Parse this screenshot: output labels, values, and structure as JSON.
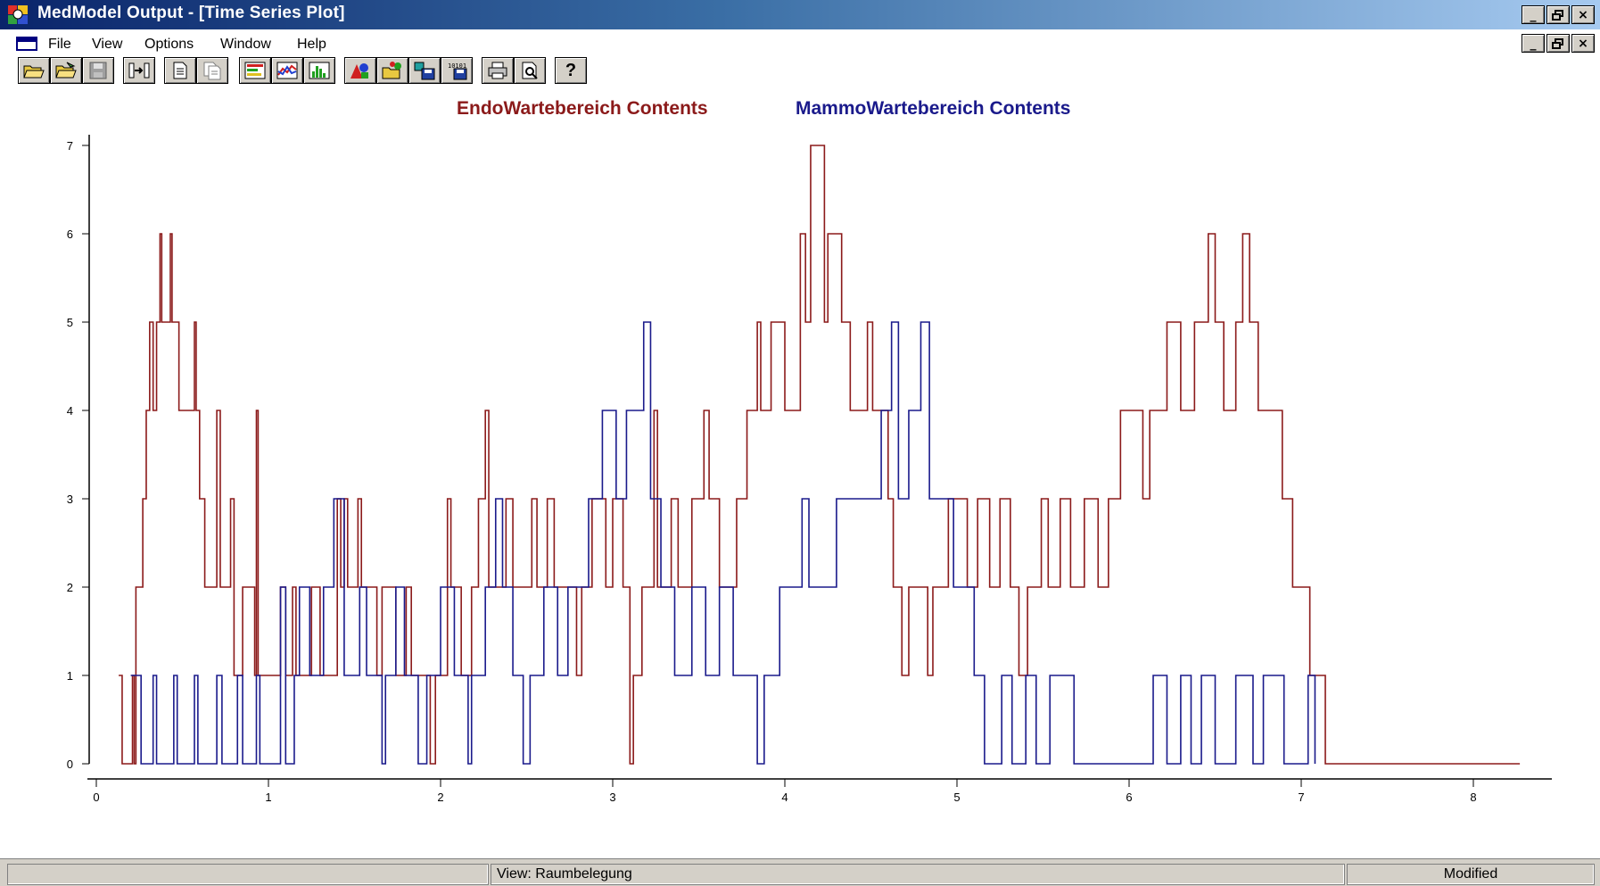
{
  "window": {
    "title": "MedModel Output - [Time Series Plot]"
  },
  "window_controls": {
    "minimize": "_",
    "restore": "̅̅",
    "close": "×"
  },
  "menu": {
    "items": [
      "File",
      "View",
      "Options",
      "Window",
      "Help"
    ]
  },
  "toolbar": {
    "buttons": [
      "open-icon",
      "open-folder-icon",
      "save-icon",
      "export-icon",
      "document-icon",
      "copy-document-icon",
      "state-chart-icon",
      "time-series-icon",
      "histogram-icon",
      "shapes-icon",
      "open-chart-icon",
      "save-chart-icon",
      "save-binary-icon",
      "print-icon",
      "print-preview-icon",
      "help-icon"
    ],
    "help_label": "?"
  },
  "chart_data": {
    "type": "line",
    "step": true,
    "xlim": [
      0,
      8.3
    ],
    "ylim": [
      0,
      7
    ],
    "x_ticks": [
      "0",
      "1",
      "2",
      "3",
      "4",
      "5",
      "6",
      "7",
      "8"
    ],
    "y_ticks": [
      "0",
      "1",
      "2",
      "3",
      "4",
      "5",
      "6",
      "7"
    ],
    "legend_position": "top-center",
    "grid": false,
    "series": [
      {
        "name": "EndoWartebereich Contents",
        "color": "#8b1a1a",
        "points": [
          [
            0.13,
            1
          ],
          [
            0.15,
            0
          ],
          [
            0.21,
            1
          ],
          [
            0.22,
            0
          ],
          [
            0.23,
            2
          ],
          [
            0.27,
            3
          ],
          [
            0.29,
            4
          ],
          [
            0.31,
            5
          ],
          [
            0.33,
            4
          ],
          [
            0.35,
            5
          ],
          [
            0.37,
            6
          ],
          [
            0.38,
            5
          ],
          [
            0.41,
            5
          ],
          [
            0.43,
            6
          ],
          [
            0.44,
            5
          ],
          [
            0.48,
            4
          ],
          [
            0.57,
            5
          ],
          [
            0.58,
            4
          ],
          [
            0.6,
            3
          ],
          [
            0.63,
            2
          ],
          [
            0.7,
            4
          ],
          [
            0.72,
            2
          ],
          [
            0.78,
            3
          ],
          [
            0.8,
            1
          ],
          [
            0.85,
            2
          ],
          [
            0.92,
            1
          ],
          [
            0.93,
            4
          ],
          [
            0.94,
            1
          ],
          [
            1.07,
            2
          ],
          [
            1.1,
            1
          ],
          [
            1.14,
            2
          ],
          [
            1.16,
            1
          ],
          [
            1.25,
            2
          ],
          [
            1.3,
            1
          ],
          [
            1.4,
            3
          ],
          [
            1.42,
            2
          ],
          [
            1.44,
            3
          ],
          [
            1.46,
            2
          ],
          [
            1.52,
            3
          ],
          [
            1.54,
            2
          ],
          [
            1.63,
            1
          ],
          [
            1.66,
            2
          ],
          [
            1.74,
            1
          ],
          [
            1.8,
            2
          ],
          [
            1.83,
            1
          ],
          [
            1.94,
            0
          ],
          [
            1.97,
            1
          ],
          [
            2.04,
            3
          ],
          [
            2.06,
            2
          ],
          [
            2.12,
            1
          ],
          [
            2.18,
            2
          ],
          [
            2.22,
            3
          ],
          [
            2.26,
            4
          ],
          [
            2.28,
            2
          ],
          [
            2.38,
            3
          ],
          [
            2.42,
            2
          ],
          [
            2.53,
            3
          ],
          [
            2.56,
            2
          ],
          [
            2.62,
            3
          ],
          [
            2.66,
            2
          ],
          [
            2.79,
            1
          ],
          [
            2.82,
            2
          ],
          [
            2.88,
            3
          ],
          [
            2.96,
            2
          ],
          [
            3.0,
            3
          ],
          [
            3.06,
            2
          ],
          [
            3.1,
            0
          ],
          [
            3.12,
            1
          ],
          [
            3.17,
            2
          ],
          [
            3.24,
            4
          ],
          [
            3.26,
            2
          ],
          [
            3.34,
            3
          ],
          [
            3.38,
            2
          ],
          [
            3.46,
            3
          ],
          [
            3.53,
            4
          ],
          [
            3.56,
            3
          ],
          [
            3.62,
            2
          ],
          [
            3.72,
            3
          ],
          [
            3.78,
            4
          ],
          [
            3.84,
            5
          ],
          [
            3.86,
            4
          ],
          [
            3.92,
            5
          ],
          [
            4.0,
            4
          ],
          [
            4.09,
            6
          ],
          [
            4.12,
            5
          ],
          [
            4.15,
            7
          ],
          [
            4.23,
            5
          ],
          [
            4.25,
            6
          ],
          [
            4.33,
            5
          ],
          [
            4.38,
            4
          ],
          [
            4.48,
            5
          ],
          [
            4.51,
            4
          ],
          [
            4.6,
            3
          ],
          [
            4.63,
            2
          ],
          [
            4.68,
            1
          ],
          [
            4.72,
            2
          ],
          [
            4.83,
            1
          ],
          [
            4.86,
            2
          ],
          [
            4.95,
            3
          ],
          [
            5.06,
            2
          ],
          [
            5.12,
            3
          ],
          [
            5.19,
            2
          ],
          [
            5.25,
            3
          ],
          [
            5.31,
            2
          ],
          [
            5.36,
            1
          ],
          [
            5.41,
            2
          ],
          [
            5.49,
            3
          ],
          [
            5.53,
            2
          ],
          [
            5.6,
            3
          ],
          [
            5.66,
            2
          ],
          [
            5.74,
            3
          ],
          [
            5.82,
            2
          ],
          [
            5.88,
            3
          ],
          [
            5.95,
            4
          ],
          [
            6.08,
            3
          ],
          [
            6.12,
            4
          ],
          [
            6.22,
            5
          ],
          [
            6.3,
            4
          ],
          [
            6.38,
            5
          ],
          [
            6.46,
            6
          ],
          [
            6.5,
            5
          ],
          [
            6.55,
            4
          ],
          [
            6.62,
            5
          ],
          [
            6.66,
            6
          ],
          [
            6.7,
            5
          ],
          [
            6.75,
            4
          ],
          [
            6.89,
            3
          ],
          [
            6.95,
            2
          ],
          [
            7.05,
            1
          ],
          [
            7.14,
            0
          ],
          [
            8.27,
            0
          ]
        ]
      },
      {
        "name": "MammoWartebereich Contents",
        "color": "#1a1a8b",
        "points": [
          [
            0.2,
            1
          ],
          [
            0.26,
            0
          ],
          [
            0.33,
            1
          ],
          [
            0.35,
            0
          ],
          [
            0.45,
            1
          ],
          [
            0.47,
            0
          ],
          [
            0.57,
            1
          ],
          [
            0.59,
            0
          ],
          [
            0.7,
            1
          ],
          [
            0.73,
            0
          ],
          [
            0.82,
            1
          ],
          [
            0.85,
            0
          ],
          [
            0.93,
            1
          ],
          [
            0.95,
            0
          ],
          [
            1.07,
            2
          ],
          [
            1.1,
            0
          ],
          [
            1.15,
            1
          ],
          [
            1.18,
            2
          ],
          [
            1.24,
            1
          ],
          [
            1.32,
            2
          ],
          [
            1.38,
            3
          ],
          [
            1.44,
            1
          ],
          [
            1.53,
            2
          ],
          [
            1.57,
            1
          ],
          [
            1.66,
            0
          ],
          [
            1.68,
            1
          ],
          [
            1.74,
            2
          ],
          [
            1.79,
            1
          ],
          [
            1.87,
            0
          ],
          [
            1.92,
            1
          ],
          [
            2.0,
            2
          ],
          [
            2.08,
            1
          ],
          [
            2.16,
            0
          ],
          [
            2.18,
            1
          ],
          [
            2.26,
            2
          ],
          [
            2.32,
            3
          ],
          [
            2.36,
            2
          ],
          [
            2.42,
            1
          ],
          [
            2.48,
            0
          ],
          [
            2.52,
            1
          ],
          [
            2.6,
            2
          ],
          [
            2.68,
            1
          ],
          [
            2.74,
            2
          ],
          [
            2.86,
            3
          ],
          [
            2.94,
            4
          ],
          [
            3.02,
            3
          ],
          [
            3.08,
            4
          ],
          [
            3.18,
            5
          ],
          [
            3.22,
            3
          ],
          [
            3.28,
            2
          ],
          [
            3.36,
            1
          ],
          [
            3.46,
            2
          ],
          [
            3.54,
            1
          ],
          [
            3.62,
            2
          ],
          [
            3.7,
            1
          ],
          [
            3.84,
            0
          ],
          [
            3.88,
            1
          ],
          [
            3.97,
            2
          ],
          [
            4.1,
            3
          ],
          [
            4.14,
            2
          ],
          [
            4.3,
            3
          ],
          [
            4.56,
            4
          ],
          [
            4.62,
            5
          ],
          [
            4.66,
            3
          ],
          [
            4.72,
            4
          ],
          [
            4.79,
            5
          ],
          [
            4.84,
            3
          ],
          [
            4.98,
            2
          ],
          [
            5.1,
            1
          ],
          [
            5.16,
            0
          ],
          [
            5.26,
            1
          ],
          [
            5.32,
            0
          ],
          [
            5.4,
            1
          ],
          [
            5.46,
            0
          ],
          [
            5.54,
            1
          ],
          [
            5.68,
            0
          ],
          [
            6.06,
            0
          ],
          [
            6.14,
            1
          ],
          [
            6.22,
            0
          ],
          [
            6.3,
            1
          ],
          [
            6.36,
            0
          ],
          [
            6.42,
            1
          ],
          [
            6.5,
            0
          ],
          [
            6.62,
            1
          ],
          [
            6.72,
            0
          ],
          [
            6.78,
            1
          ],
          [
            6.9,
            0
          ],
          [
            7.04,
            1
          ],
          [
            7.08,
            0
          ]
        ]
      }
    ]
  },
  "status": {
    "left": "",
    "view": "View:  Raumbelegung",
    "modified": "Modified"
  }
}
